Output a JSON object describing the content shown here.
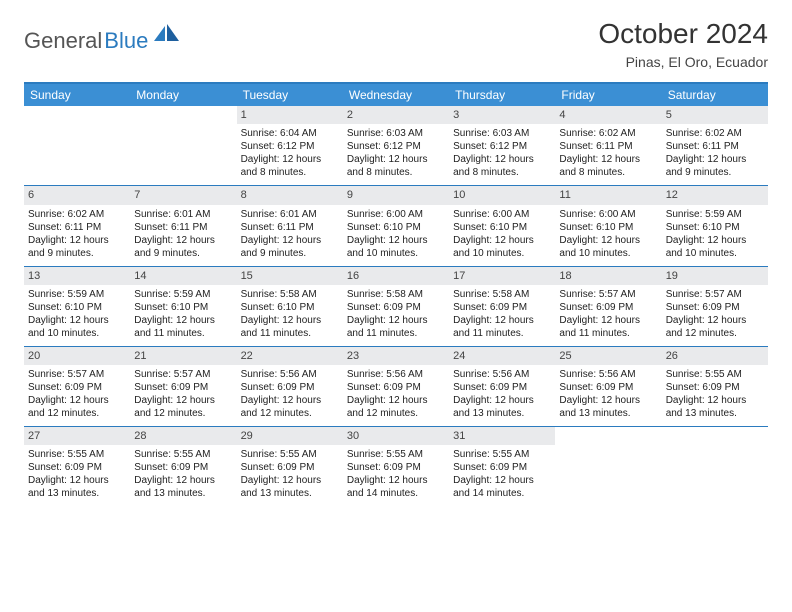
{
  "brand": {
    "general": "General",
    "blue": "Blue"
  },
  "header": {
    "title": "October 2024",
    "location": "Pinas, El Oro, Ecuador"
  },
  "colors": {
    "header_bar": "#3b8fd4",
    "border": "#2b7bbf",
    "daynum_bg": "#e9eaec",
    "text": "#222222",
    "title_text": "#333333"
  },
  "day_names": [
    "Sunday",
    "Monday",
    "Tuesday",
    "Wednesday",
    "Thursday",
    "Friday",
    "Saturday"
  ],
  "weeks": [
    [
      {
        "day": "",
        "sunrise": "",
        "sunset": "",
        "daylight": ""
      },
      {
        "day": "",
        "sunrise": "",
        "sunset": "",
        "daylight": ""
      },
      {
        "day": "1",
        "sunrise": "Sunrise: 6:04 AM",
        "sunset": "Sunset: 6:12 PM",
        "daylight": "Daylight: 12 hours and 8 minutes."
      },
      {
        "day": "2",
        "sunrise": "Sunrise: 6:03 AM",
        "sunset": "Sunset: 6:12 PM",
        "daylight": "Daylight: 12 hours and 8 minutes."
      },
      {
        "day": "3",
        "sunrise": "Sunrise: 6:03 AM",
        "sunset": "Sunset: 6:12 PM",
        "daylight": "Daylight: 12 hours and 8 minutes."
      },
      {
        "day": "4",
        "sunrise": "Sunrise: 6:02 AM",
        "sunset": "Sunset: 6:11 PM",
        "daylight": "Daylight: 12 hours and 8 minutes."
      },
      {
        "day": "5",
        "sunrise": "Sunrise: 6:02 AM",
        "sunset": "Sunset: 6:11 PM",
        "daylight": "Daylight: 12 hours and 9 minutes."
      }
    ],
    [
      {
        "day": "6",
        "sunrise": "Sunrise: 6:02 AM",
        "sunset": "Sunset: 6:11 PM",
        "daylight": "Daylight: 12 hours and 9 minutes."
      },
      {
        "day": "7",
        "sunrise": "Sunrise: 6:01 AM",
        "sunset": "Sunset: 6:11 PM",
        "daylight": "Daylight: 12 hours and 9 minutes."
      },
      {
        "day": "8",
        "sunrise": "Sunrise: 6:01 AM",
        "sunset": "Sunset: 6:11 PM",
        "daylight": "Daylight: 12 hours and 9 minutes."
      },
      {
        "day": "9",
        "sunrise": "Sunrise: 6:00 AM",
        "sunset": "Sunset: 6:10 PM",
        "daylight": "Daylight: 12 hours and 10 minutes."
      },
      {
        "day": "10",
        "sunrise": "Sunrise: 6:00 AM",
        "sunset": "Sunset: 6:10 PM",
        "daylight": "Daylight: 12 hours and 10 minutes."
      },
      {
        "day": "11",
        "sunrise": "Sunrise: 6:00 AM",
        "sunset": "Sunset: 6:10 PM",
        "daylight": "Daylight: 12 hours and 10 minutes."
      },
      {
        "day": "12",
        "sunrise": "Sunrise: 5:59 AM",
        "sunset": "Sunset: 6:10 PM",
        "daylight": "Daylight: 12 hours and 10 minutes."
      }
    ],
    [
      {
        "day": "13",
        "sunrise": "Sunrise: 5:59 AM",
        "sunset": "Sunset: 6:10 PM",
        "daylight": "Daylight: 12 hours and 10 minutes."
      },
      {
        "day": "14",
        "sunrise": "Sunrise: 5:59 AM",
        "sunset": "Sunset: 6:10 PM",
        "daylight": "Daylight: 12 hours and 11 minutes."
      },
      {
        "day": "15",
        "sunrise": "Sunrise: 5:58 AM",
        "sunset": "Sunset: 6:10 PM",
        "daylight": "Daylight: 12 hours and 11 minutes."
      },
      {
        "day": "16",
        "sunrise": "Sunrise: 5:58 AM",
        "sunset": "Sunset: 6:09 PM",
        "daylight": "Daylight: 12 hours and 11 minutes."
      },
      {
        "day": "17",
        "sunrise": "Sunrise: 5:58 AM",
        "sunset": "Sunset: 6:09 PM",
        "daylight": "Daylight: 12 hours and 11 minutes."
      },
      {
        "day": "18",
        "sunrise": "Sunrise: 5:57 AM",
        "sunset": "Sunset: 6:09 PM",
        "daylight": "Daylight: 12 hours and 11 minutes."
      },
      {
        "day": "19",
        "sunrise": "Sunrise: 5:57 AM",
        "sunset": "Sunset: 6:09 PM",
        "daylight": "Daylight: 12 hours and 12 minutes."
      }
    ],
    [
      {
        "day": "20",
        "sunrise": "Sunrise: 5:57 AM",
        "sunset": "Sunset: 6:09 PM",
        "daylight": "Daylight: 12 hours and 12 minutes."
      },
      {
        "day": "21",
        "sunrise": "Sunrise: 5:57 AM",
        "sunset": "Sunset: 6:09 PM",
        "daylight": "Daylight: 12 hours and 12 minutes."
      },
      {
        "day": "22",
        "sunrise": "Sunrise: 5:56 AM",
        "sunset": "Sunset: 6:09 PM",
        "daylight": "Daylight: 12 hours and 12 minutes."
      },
      {
        "day": "23",
        "sunrise": "Sunrise: 5:56 AM",
        "sunset": "Sunset: 6:09 PM",
        "daylight": "Daylight: 12 hours and 12 minutes."
      },
      {
        "day": "24",
        "sunrise": "Sunrise: 5:56 AM",
        "sunset": "Sunset: 6:09 PM",
        "daylight": "Daylight: 12 hours and 13 minutes."
      },
      {
        "day": "25",
        "sunrise": "Sunrise: 5:56 AM",
        "sunset": "Sunset: 6:09 PM",
        "daylight": "Daylight: 12 hours and 13 minutes."
      },
      {
        "day": "26",
        "sunrise": "Sunrise: 5:55 AM",
        "sunset": "Sunset: 6:09 PM",
        "daylight": "Daylight: 12 hours and 13 minutes."
      }
    ],
    [
      {
        "day": "27",
        "sunrise": "Sunrise: 5:55 AM",
        "sunset": "Sunset: 6:09 PM",
        "daylight": "Daylight: 12 hours and 13 minutes."
      },
      {
        "day": "28",
        "sunrise": "Sunrise: 5:55 AM",
        "sunset": "Sunset: 6:09 PM",
        "daylight": "Daylight: 12 hours and 13 minutes."
      },
      {
        "day": "29",
        "sunrise": "Sunrise: 5:55 AM",
        "sunset": "Sunset: 6:09 PM",
        "daylight": "Daylight: 12 hours and 13 minutes."
      },
      {
        "day": "30",
        "sunrise": "Sunrise: 5:55 AM",
        "sunset": "Sunset: 6:09 PM",
        "daylight": "Daylight: 12 hours and 14 minutes."
      },
      {
        "day": "31",
        "sunrise": "Sunrise: 5:55 AM",
        "sunset": "Sunset: 6:09 PM",
        "daylight": "Daylight: 12 hours and 14 minutes."
      },
      {
        "day": "",
        "sunrise": "",
        "sunset": "",
        "daylight": ""
      },
      {
        "day": "",
        "sunrise": "",
        "sunset": "",
        "daylight": ""
      }
    ]
  ]
}
